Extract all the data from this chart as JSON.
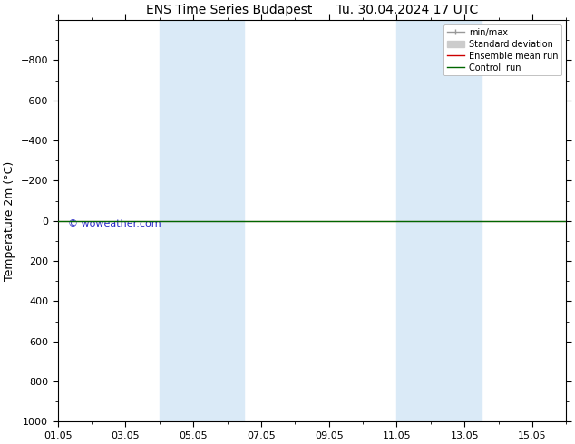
{
  "title": "ENS Time Series Budapest      Tu. 30.04.2024 17 UTC",
  "ylabel": "Temperature 2m (°C)",
  "ylim_bottom": 1000,
  "ylim_top": -1000,
  "yticks": [
    -800,
    -600,
    -400,
    -200,
    0,
    200,
    400,
    600,
    800,
    1000
  ],
  "xtick_labels": [
    "01.05",
    "03.05",
    "05.05",
    "07.05",
    "09.05",
    "11.05",
    "13.05",
    "15.05"
  ],
  "xtick_positions": [
    0,
    2,
    4,
    6,
    8,
    10,
    12,
    14
  ],
  "xlim": [
    0,
    15
  ],
  "background_color": "#ffffff",
  "band_color": "#daeaf7",
  "bands": [
    {
      "start": 3.0,
      "end": 5.5
    },
    {
      "start": 10.0,
      "end": 12.5
    }
  ],
  "line_color_ensemble": "#cc0000",
  "line_color_control": "#006600",
  "watermark": "© woweather.com",
  "watermark_color": "#0000bb",
  "legend_items": [
    {
      "label": "min/max",
      "color": "#999999",
      "lw": 1.0,
      "type": "line_bar"
    },
    {
      "label": "Standard deviation",
      "color": "#cccccc",
      "lw": 5,
      "type": "rect"
    },
    {
      "label": "Ensemble mean run",
      "color": "#cc0000",
      "lw": 1.0,
      "type": "line"
    },
    {
      "label": "Controll run",
      "color": "#006600",
      "lw": 1.0,
      "type": "line"
    }
  ],
  "title_fontsize": 10,
  "axis_label_fontsize": 9,
  "tick_fontsize": 8,
  "legend_fontsize": 7
}
